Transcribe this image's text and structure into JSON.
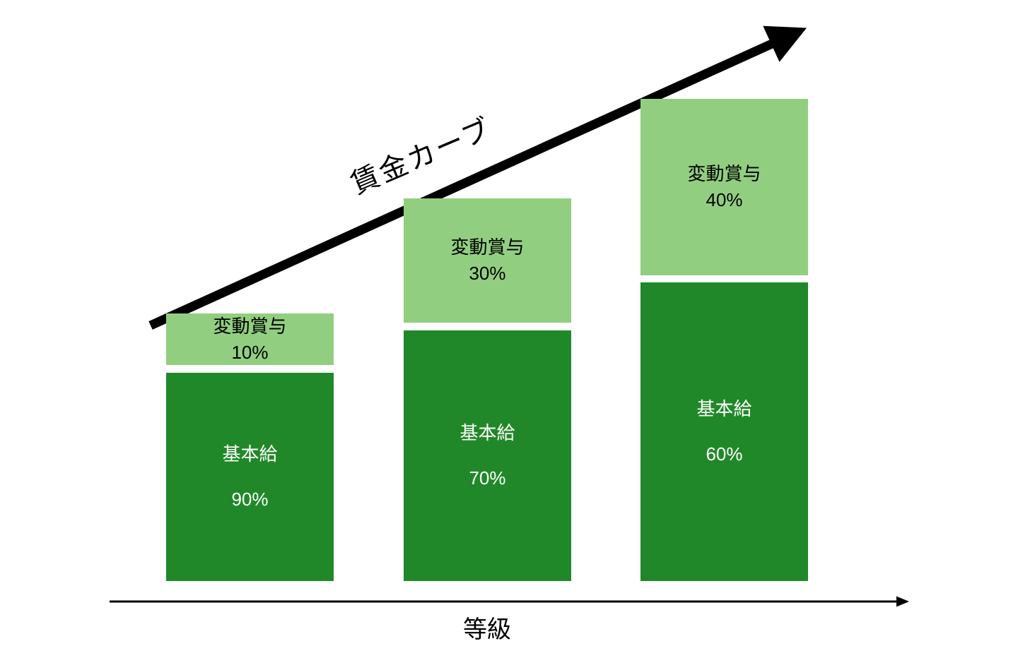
{
  "chart_data": {
    "type": "bar",
    "stacked": true,
    "orientation": "vertical",
    "title": "",
    "xlabel": "等級",
    "ylabel": "",
    "annotation": "賃金カーブ",
    "categories": [
      "",
      "",
      ""
    ],
    "series": [
      {
        "name": "基本給",
        "values": [
          90,
          70,
          60
        ],
        "unit": "%",
        "color": "#218829",
        "label_color": "#ffffff"
      },
      {
        "name": "変動賞与",
        "values": [
          10,
          30,
          40
        ],
        "unit": "%",
        "color": "#92CE80",
        "label_color": "#000000"
      }
    ],
    "segment_value_labels": {
      "基本給": [
        "90%",
        "70%",
        "60%"
      ],
      "変動賞与": [
        "10%",
        "30%",
        "40%"
      ]
    },
    "background": "#ffffff",
    "trend_arrow_color": "#000000",
    "axis_arrow_color": "#000000",
    "legend": false,
    "grid": false
  }
}
